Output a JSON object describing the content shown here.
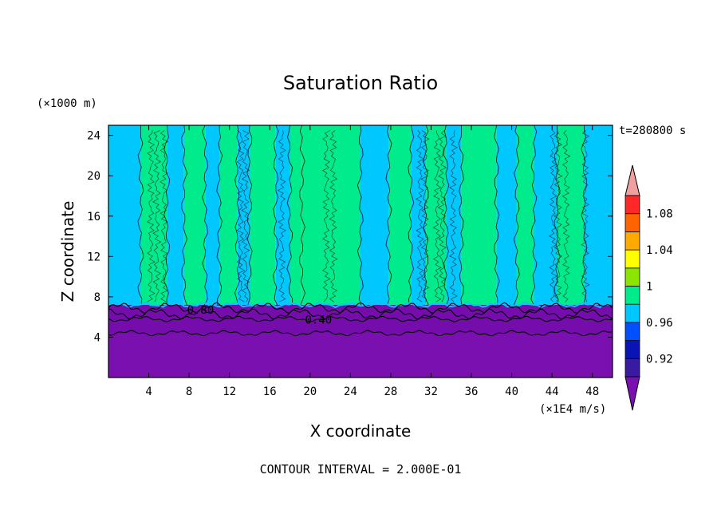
{
  "chart_data": {
    "type": "heatmap",
    "title": "Saturation Ratio",
    "xlabel": "X coordinate",
    "ylabel": "Z coordinate",
    "x_units": "(×1E4 m/s)",
    "y_units": "(×1000 m)",
    "time_label": "t=280800 s",
    "footer": "CONTOUR INTERVAL = 2.000E-01",
    "xlim": [
      0,
      50
    ],
    "ylim": [
      0,
      25
    ],
    "x_ticks": [
      4,
      8,
      12,
      16,
      20,
      24,
      28,
      32,
      36,
      40,
      44,
      48
    ],
    "y_ticks": [
      4,
      8,
      12,
      16,
      20,
      24
    ],
    "contour_labels": [
      {
        "text": "0.80",
        "x": 7.8,
        "z": 6.8
      },
      {
        "text": "0.40",
        "x": 19.5,
        "z": 5.8
      }
    ],
    "colorbar": {
      "levels": [
        0.9,
        0.92,
        0.94,
        0.96,
        0.98,
        1.0,
        1.02,
        1.04,
        1.06,
        1.08,
        1.1
      ],
      "tick_labels": [
        "0.92",
        "0.96",
        "1",
        "1.04",
        "1.08"
      ],
      "tick_values": [
        0.92,
        0.96,
        1.0,
        1.04,
        1.08
      ],
      "colors": [
        "#3a1aa0",
        "#0a14b4",
        "#0050ff",
        "#00c8ff",
        "#00eb8c",
        "#8ae600",
        "#ffff00",
        "#ffaa00",
        "#ff6400",
        "#ff2828"
      ],
      "under_color": "#7a10b0",
      "over_color": "#f0a0a0"
    },
    "boundary_layer_top_z": 7.2,
    "upper_layer_bands": [
      {
        "x0": 0,
        "x1": 3.2,
        "value": 0.97
      },
      {
        "x0": 3.2,
        "x1": 5.8,
        "value": 0.99
      },
      {
        "x0": 5.8,
        "x1": 7.5,
        "value": 0.97
      },
      {
        "x0": 7.5,
        "x1": 9.6,
        "value": 0.99
      },
      {
        "x0": 9.6,
        "x1": 11.0,
        "value": 0.97
      },
      {
        "x0": 11.0,
        "x1": 12.8,
        "value": 0.99
      },
      {
        "x0": 12.8,
        "x1": 14.0,
        "value": 0.97
      },
      {
        "x0": 14.0,
        "x1": 16.6,
        "value": 0.99
      },
      {
        "x0": 16.6,
        "x1": 18.0,
        "value": 0.97
      },
      {
        "x0": 18.0,
        "x1": 19.2,
        "value": 0.99
      },
      {
        "x0": 19.2,
        "x1": 25.0,
        "value": 0.99
      },
      {
        "x0": 25.0,
        "x1": 27.8,
        "value": 0.97
      },
      {
        "x0": 27.8,
        "x1": 30.0,
        "value": 0.99
      },
      {
        "x0": 30.0,
        "x1": 31.5,
        "value": 0.97
      },
      {
        "x0": 31.5,
        "x1": 33.5,
        "value": 0.99
      },
      {
        "x0": 33.5,
        "x1": 35.0,
        "value": 0.97
      },
      {
        "x0": 35.0,
        "x1": 38.5,
        "value": 0.99
      },
      {
        "x0": 38.5,
        "x1": 40.5,
        "value": 0.97
      },
      {
        "x0": 40.5,
        "x1": 42.2,
        "value": 0.99
      },
      {
        "x0": 42.2,
        "x1": 44.5,
        "value": 0.97
      },
      {
        "x0": 44.5,
        "x1": 47.2,
        "value": 0.99
      },
      {
        "x0": 47.2,
        "x1": 50.0,
        "value": 0.97
      }
    ],
    "low_level_contours": [
      {
        "level": 0.8,
        "z": 6.9
      },
      {
        "level": 0.6,
        "z": 6.3
      },
      {
        "level": 0.4,
        "z": 5.8
      },
      {
        "level": 0.2,
        "z": 4.4
      }
    ]
  }
}
